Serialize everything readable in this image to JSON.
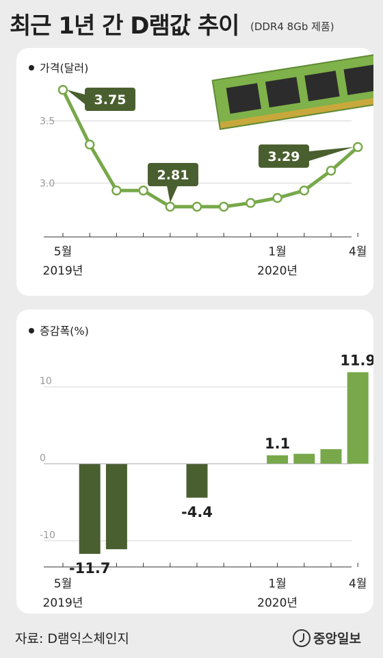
{
  "header": {
    "title": "최근 1년 간 D램값 추이",
    "subtitle": "(DDR4 8Gb 제품)"
  },
  "chart_data": [
    {
      "type": "line",
      "series_label": "가격(달러)",
      "x": [
        "2019-05",
        "2019-06",
        "2019-07",
        "2019-08",
        "2019-09",
        "2019-10",
        "2019-11",
        "2019-12",
        "2020-01",
        "2020-02",
        "2020-03",
        "2020-04"
      ],
      "values": [
        3.75,
        3.31,
        2.94,
        2.94,
        2.81,
        2.81,
        2.81,
        2.84,
        2.88,
        2.94,
        3.1,
        3.29
      ],
      "annotations": [
        {
          "index": 0,
          "label": "3.75"
        },
        {
          "index": 4,
          "label": "2.81"
        },
        {
          "index": 11,
          "label": "3.29"
        }
      ],
      "y_ticks": [
        {
          "value": 3.0,
          "label": "3.0"
        },
        {
          "value": 3.5,
          "label": "3.5"
        }
      ],
      "x_tick_labels": [
        {
          "index": 0,
          "month": "5월",
          "year": "2019년"
        },
        {
          "index": 8,
          "month": "1월",
          "year": "2020년"
        },
        {
          "index": 11,
          "month": "4월",
          "year": ""
        }
      ],
      "ylim": [
        2.6,
        3.9
      ],
      "colors": {
        "line": "#78a84a",
        "label_box": "#4a5f2f"
      }
    },
    {
      "type": "bar",
      "series_label": "증감폭(%)",
      "x": [
        "2019-05",
        "2019-06",
        "2019-07",
        "2019-08",
        "2019-09",
        "2019-10",
        "2019-11",
        "2019-12",
        "2020-01",
        "2020-02",
        "2020-03",
        "2020-04"
      ],
      "values": [
        0,
        -11.7,
        -11.1,
        0,
        0,
        -4.4,
        0,
        0,
        1.1,
        1.3,
        1.9,
        11.9
      ],
      "annotations": [
        {
          "index": 1,
          "label": "-11.7"
        },
        {
          "index": 5,
          "label": "-4.4"
        },
        {
          "index": 8,
          "label": "1.1"
        },
        {
          "index": 11,
          "label": "11.9"
        }
      ],
      "y_ticks": [
        {
          "value": 10,
          "label": "10"
        },
        {
          "value": 0,
          "label": "0"
        },
        {
          "value": -10,
          "label": "-10"
        }
      ],
      "x_tick_labels": [
        {
          "index": 0,
          "month": "5월",
          "year": "2019년"
        },
        {
          "index": 8,
          "month": "1월",
          "year": "2020년"
        },
        {
          "index": 11,
          "month": "4월",
          "year": ""
        }
      ],
      "ylim": [
        -15,
        14
      ],
      "colors": {
        "positive": "#78a84a",
        "negative": "#4a5f2f"
      }
    }
  ],
  "footer": {
    "source": "자료: D램익스체인지",
    "logo": "중앙일보"
  }
}
